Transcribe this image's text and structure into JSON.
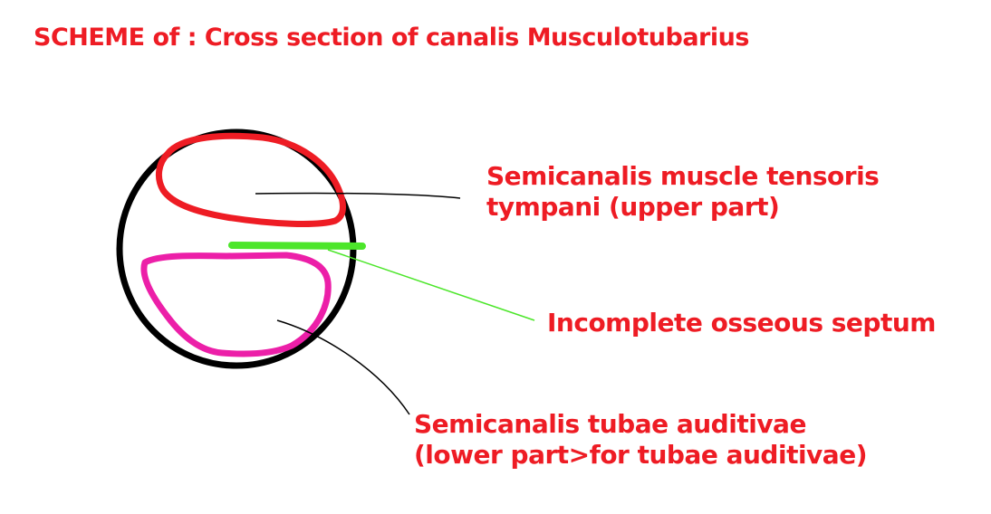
{
  "title": "SCHEME of : Cross section of canalis Musculotubarius",
  "labels": {
    "upper_line1": "Semicanalis muscle tensoris",
    "upper_line2": "tympani (upper part)",
    "septum": "Incomplete osseous septum",
    "lower_line1": "Semicanalis tubae auditivae",
    "lower_line2": "(lower part>for tubae auditivae)"
  },
  "colors": {
    "text": "#ee1c24",
    "outer_circle": "#000000",
    "upper_region": "#ee1c24",
    "lower_region": "#ec1fa8",
    "septum": "#4ce62a",
    "leader_line": "#000000",
    "septum_leader": "#4ce62a"
  }
}
